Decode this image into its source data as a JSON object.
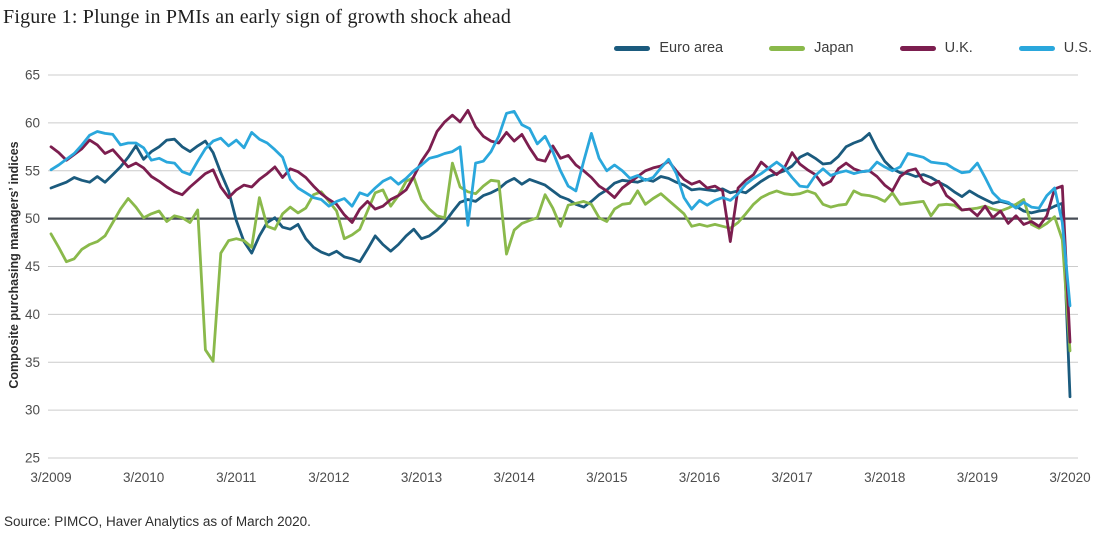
{
  "title": "Figure 1: Plunge in PMIs an early sign of growth shock ahead",
  "source": "Source: PIMCO, Haver Analytics as of March 2020.",
  "chart_data": {
    "type": "line",
    "title": "Figure 1: Plunge in PMIs an early sign of growth shock ahead",
    "ylabel": "Composite purchasing managers’ indices",
    "xlabel": "",
    "ylim": [
      25,
      65
    ],
    "y_ticks": [
      25,
      30,
      35,
      40,
      45,
      50,
      55,
      60,
      65
    ],
    "reference_line": 50,
    "grid": "horizontal",
    "legend_position": "top-right",
    "frequency": "monthly",
    "x_start": "3/2009",
    "x_end": "3/2020",
    "x_tick_labels": [
      "3/2009",
      "3/2010",
      "3/2011",
      "3/2012",
      "3/2013",
      "3/2014",
      "3/2015",
      "3/2016",
      "3/2017",
      "3/2018",
      "3/2019",
      "3/2020"
    ],
    "colors": {
      "grid": "#cccccc",
      "reference_line": "#474d56",
      "tick_text": "#4d4d4d"
    },
    "series": [
      {
        "name": "Euro area",
        "color": "#1b5b7e",
        "values": [
          53.2,
          53.5,
          53.8,
          54.3,
          54.0,
          53.8,
          54.4,
          53.8,
          54.6,
          55.4,
          56.4,
          57.6,
          56.2,
          57.0,
          57.5,
          58.2,
          58.3,
          57.5,
          57.0,
          57.6,
          58.1,
          56.9,
          54.8,
          52.9,
          49.8,
          47.6,
          46.4,
          48.2,
          49.6,
          50.1,
          49.1,
          48.9,
          49.4,
          47.9,
          47.0,
          46.5,
          46.2,
          46.6,
          46.0,
          45.8,
          45.5,
          46.8,
          48.2,
          47.3,
          46.6,
          47.3,
          48.2,
          48.9,
          47.9,
          48.2,
          48.8,
          49.6,
          50.7,
          51.7,
          52.0,
          51.8,
          52.4,
          52.7,
          53.1,
          53.8,
          54.2,
          53.6,
          54.1,
          53.8,
          53.5,
          52.9,
          52.3,
          52.0,
          51.5,
          51.2,
          51.8,
          52.5,
          53.0,
          53.7,
          54.0,
          53.9,
          53.8,
          54.1,
          53.9,
          54.4,
          54.2,
          53.8,
          53.5,
          53.0,
          53.1,
          53.0,
          52.9,
          53.1,
          52.7,
          52.9,
          52.7,
          53.3,
          53.9,
          54.4,
          54.7,
          55.0,
          55.5,
          56.4,
          56.8,
          56.3,
          55.7,
          55.8,
          56.5,
          57.5,
          57.9,
          58.2,
          58.9,
          57.3,
          56.0,
          55.2,
          54.8,
          54.7,
          54.4,
          54.6,
          54.3,
          53.8,
          53.4,
          52.8,
          52.3,
          52.9,
          52.4,
          52.0,
          51.6,
          51.8,
          51.6,
          51.3,
          50.8,
          50.6,
          50.8,
          50.9,
          51.3,
          51.6,
          31.4
        ]
      },
      {
        "name": "Japan",
        "color": "#8ab94b",
        "values": [
          48.4,
          47.0,
          45.5,
          45.8,
          46.8,
          47.3,
          47.6,
          48.2,
          49.6,
          51.0,
          52.1,
          51.2,
          50.1,
          50.5,
          50.8,
          49.7,
          50.3,
          50.1,
          49.6,
          50.9,
          36.3,
          35.1,
          46.4,
          47.7,
          47.9,
          47.7,
          47.0,
          52.2,
          49.2,
          48.9,
          50.5,
          51.2,
          50.6,
          51.1,
          52.5,
          52.8,
          51.8,
          50.8,
          47.9,
          48.3,
          48.9,
          50.8,
          52.7,
          53.0,
          51.3,
          52.4,
          53.9,
          54.3,
          52.0,
          51.0,
          50.3,
          50.1,
          55.8,
          53.3,
          52.8,
          52.6,
          53.4,
          54.0,
          53.9,
          46.3,
          48.8,
          49.5,
          49.8,
          50.1,
          52.5,
          51.1,
          49.2,
          51.4,
          51.6,
          51.8,
          51.5,
          50.1,
          49.7,
          51.0,
          51.5,
          51.6,
          52.9,
          51.5,
          52.1,
          52.6,
          51.9,
          51.2,
          50.5,
          49.2,
          49.4,
          49.2,
          49.4,
          49.2,
          49.0,
          49.6,
          50.5,
          51.5,
          52.2,
          52.6,
          52.9,
          52.6,
          52.5,
          52.6,
          52.9,
          52.6,
          51.5,
          51.2,
          51.4,
          51.5,
          52.9,
          52.5,
          52.4,
          52.2,
          51.8,
          52.7,
          51.5,
          51.6,
          51.7,
          51.8,
          50.3,
          51.4,
          51.5,
          51.4,
          50.9,
          51.0,
          51.1,
          51.3,
          51.0,
          50.8,
          51.1,
          51.5,
          52.0,
          49.4,
          49.0,
          49.5,
          50.2,
          47.8,
          36.2
        ]
      },
      {
        "name": "U.K.",
        "color": "#7c1e4f",
        "values": [
          57.5,
          56.9,
          56.1,
          56.7,
          57.3,
          58.2,
          57.7,
          56.8,
          57.2,
          56.3,
          55.4,
          55.8,
          55.3,
          54.4,
          53.9,
          53.3,
          52.8,
          52.5,
          53.3,
          54.0,
          54.7,
          55.1,
          53.3,
          52.2,
          53.0,
          53.5,
          53.3,
          54.1,
          54.7,
          55.4,
          54.3,
          55.2,
          54.9,
          54.3,
          53.4,
          52.6,
          52.0,
          51.5,
          50.4,
          49.6,
          51.0,
          51.8,
          51.0,
          51.3,
          52.0,
          52.4,
          53.0,
          54.4,
          56.0,
          57.2,
          59.1,
          60.1,
          60.8,
          60.1,
          61.3,
          59.6,
          58.6,
          58.1,
          57.9,
          59.0,
          58.1,
          58.8,
          57.4,
          56.2,
          56.0,
          57.6,
          56.3,
          56.6,
          55.6,
          55.0,
          54.3,
          53.4,
          52.9,
          52.2,
          53.2,
          53.8,
          54.4,
          55.0,
          55.3,
          55.5,
          56.0,
          55.0,
          54.1,
          53.6,
          53.9,
          53.2,
          53.4,
          52.9,
          47.6,
          53.2,
          54.0,
          54.6,
          55.9,
          55.2,
          54.6,
          55.3,
          56.9,
          55.7,
          55.1,
          54.6,
          53.5,
          53.9,
          55.2,
          55.8,
          55.2,
          54.9,
          55.0,
          54.4,
          53.5,
          52.9,
          54.4,
          55.0,
          55.2,
          53.9,
          53.5,
          53.9,
          52.4,
          51.8,
          50.9,
          51.0,
          50.3,
          51.3,
          50.1,
          50.8,
          49.5,
          50.3,
          49.4,
          49.7,
          49.2,
          50.3,
          53.1,
          53.4,
          37.1
        ]
      },
      {
        "name": "U.S.",
        "color": "#2aa7dc",
        "values": [
          55.1,
          55.6,
          56.2,
          56.8,
          57.7,
          58.7,
          59.1,
          58.9,
          58.8,
          57.7,
          57.9,
          57.9,
          57.4,
          56.1,
          56.3,
          55.9,
          55.8,
          54.9,
          54.6,
          56.0,
          57.3,
          58.1,
          58.4,
          57.6,
          58.2,
          57.4,
          59.0,
          58.3,
          57.9,
          57.2,
          56.4,
          54.1,
          53.2,
          52.7,
          52.2,
          52.0,
          51.3,
          51.8,
          52.1,
          51.3,
          52.7,
          52.4,
          53.2,
          53.9,
          54.3,
          53.6,
          54.2,
          55.0,
          55.6,
          56.3,
          56.5,
          56.8,
          57.0,
          57.5,
          49.3,
          55.8,
          56.0,
          57.0,
          58.6,
          61.0,
          61.2,
          59.8,
          59.4,
          57.8,
          58.6,
          57.0,
          55.0,
          53.4,
          52.9,
          56.0,
          58.9,
          56.3,
          55.0,
          55.6,
          55.0,
          54.2,
          54.5,
          54.0,
          54.3,
          55.3,
          56.2,
          54.7,
          52.2,
          51.0,
          51.9,
          51.4,
          51.9,
          52.2,
          51.9,
          52.6,
          53.6,
          54.2,
          54.7,
          55.3,
          55.9,
          55.3,
          54.3,
          53.4,
          53.3,
          54.5,
          55.2,
          54.5,
          54.8,
          55.0,
          54.7,
          54.9,
          55.0,
          55.9,
          55.4,
          55.0,
          55.4,
          56.8,
          56.6,
          56.4,
          55.9,
          55.8,
          55.7,
          55.2,
          54.8,
          54.9,
          55.8,
          54.3,
          52.7,
          51.9,
          51.7,
          51.1,
          51.7,
          51.2,
          51.1,
          52.4,
          53.2,
          49.6,
          40.9
        ]
      }
    ]
  }
}
